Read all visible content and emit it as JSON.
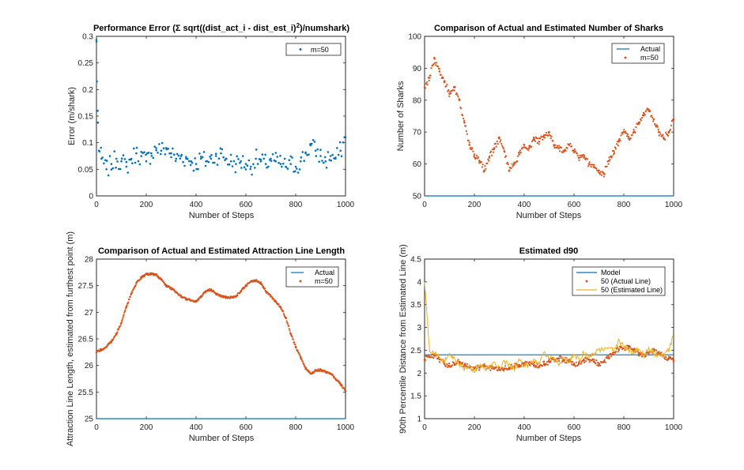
{
  "chart_data": [
    {
      "type": "scatter",
      "title": "Performance Error (Σ sqrt((dist_act_i - dist_est_i)",
      "title_sup": "2",
      "title_tail": ")/numshark)",
      "xlabel": "Number of Steps",
      "ylabel": "Error (m/shark)",
      "xlim": [
        0,
        1000
      ],
      "ylim": [
        0,
        0.3
      ],
      "xticks": [
        0,
        200,
        400,
        600,
        800,
        1000
      ],
      "yticks": [
        0,
        0.05,
        0.1,
        0.15,
        0.2,
        0.25,
        0.3
      ],
      "legend_position": "top-right",
      "x": [
        0,
        2,
        5,
        10,
        20,
        40,
        60,
        80,
        100,
        120,
        140,
        160,
        180,
        200,
        220,
        240,
        260,
        280,
        300,
        320,
        340,
        360,
        380,
        400,
        420,
        440,
        460,
        480,
        500,
        520,
        540,
        560,
        580,
        600,
        620,
        640,
        660,
        680,
        700,
        720,
        740,
        760,
        780,
        800,
        820,
        840,
        860,
        880,
        900,
        920,
        940,
        960,
        980,
        1000
      ],
      "series": [
        {
          "name": "m=50",
          "style": "points",
          "color": "#0072BD",
          "values": [
            0.29,
            0.215,
            0.16,
            0.085,
            0.07,
            0.05,
            0.06,
            0.07,
            0.065,
            0.055,
            0.07,
            0.08,
            0.075,
            0.065,
            0.08,
            0.09,
            0.085,
            0.09,
            0.08,
            0.07,
            0.075,
            0.07,
            0.065,
            0.06,
            0.07,
            0.065,
            0.07,
            0.075,
            0.08,
            0.07,
            0.065,
            0.06,
            0.065,
            0.06,
            0.055,
            0.07,
            0.065,
            0.06,
            0.07,
            0.065,
            0.06,
            0.055,
            0.06,
            0.055,
            0.065,
            0.08,
            0.095,
            0.085,
            0.075,
            0.065,
            0.075,
            0.07,
            0.085,
            0.11
          ]
        }
      ]
    },
    {
      "type": "scatter",
      "title": "Comparison of Actual and Estimated Number of Sharks",
      "xlabel": "Number of Steps",
      "ylabel": "Number of Sharks",
      "xlim": [
        0,
        1000
      ],
      "ylim": [
        50,
        100
      ],
      "xticks": [
        0,
        200,
        400,
        600,
        800,
        1000
      ],
      "yticks": [
        50,
        60,
        70,
        80,
        90,
        100
      ],
      "legend_position": "top-right",
      "x": [
        0,
        20,
        40,
        60,
        80,
        100,
        120,
        140,
        160,
        180,
        200,
        220,
        240,
        260,
        280,
        300,
        320,
        340,
        360,
        380,
        400,
        420,
        440,
        460,
        480,
        500,
        520,
        540,
        560,
        580,
        600,
        620,
        640,
        660,
        680,
        700,
        720,
        740,
        760,
        780,
        800,
        820,
        840,
        860,
        880,
        900,
        920,
        940,
        960,
        980,
        1000
      ],
      "series": [
        {
          "name": "Actual",
          "style": "line",
          "color": "#0072BD",
          "values": [
            50,
            50,
            50,
            50,
            50,
            50,
            50,
            50,
            50,
            50,
            50,
            50,
            50,
            50,
            50,
            50,
            50,
            50,
            50,
            50,
            50,
            50,
            50,
            50,
            50,
            50,
            50,
            50,
            50,
            50,
            50,
            50,
            50,
            50,
            50,
            50,
            50,
            50,
            50,
            50,
            50,
            50,
            50,
            50,
            50,
            50,
            50,
            50,
            50,
            50,
            50
          ]
        },
        {
          "name": "m=50",
          "style": "points",
          "color": "#D95319",
          "values": [
            84,
            87,
            93,
            89,
            86,
            82,
            84,
            80,
            73,
            66,
            63,
            61,
            58,
            62,
            65,
            68,
            64,
            58,
            60,
            63,
            66,
            65,
            68,
            67,
            69,
            70,
            66,
            65,
            64,
            66,
            64,
            62,
            62,
            60,
            59,
            58,
            57,
            61,
            64,
            67,
            70,
            68,
            70,
            73,
            76,
            77,
            74,
            70,
            68,
            70,
            74
          ]
        }
      ]
    },
    {
      "type": "line",
      "title": "Comparison of Actual and Estimated Attraction Line Length",
      "xlabel": "Number of Steps",
      "ylabel": "Attraction Line Length, estimated from furthest point (m)",
      "xlim": [
        0,
        1000
      ],
      "ylim": [
        25,
        28
      ],
      "xticks": [
        0,
        200,
        400,
        600,
        800,
        1000
      ],
      "yticks": [
        25,
        25.5,
        26,
        26.5,
        27,
        27.5,
        28
      ],
      "legend_position": "top-right",
      "x": [
        0,
        20,
        40,
        60,
        80,
        100,
        120,
        140,
        160,
        180,
        200,
        220,
        240,
        260,
        280,
        300,
        320,
        340,
        360,
        380,
        400,
        420,
        440,
        460,
        480,
        500,
        520,
        540,
        560,
        580,
        600,
        620,
        640,
        660,
        680,
        700,
        720,
        740,
        760,
        780,
        800,
        820,
        840,
        860,
        880,
        900,
        920,
        940,
        960,
        980,
        1000
      ],
      "series": [
        {
          "name": "Actual",
          "style": "line",
          "color": "#0072BD",
          "values": [
            25,
            25,
            25,
            25,
            25,
            25,
            25,
            25,
            25,
            25,
            25,
            25,
            25,
            25,
            25,
            25,
            25,
            25,
            25,
            25,
            25,
            25,
            25,
            25,
            25,
            25,
            25,
            25,
            25,
            25,
            25,
            25,
            25,
            25,
            25,
            25,
            25,
            25,
            25,
            25,
            25,
            25,
            25,
            25,
            25,
            25,
            25,
            25,
            25,
            25,
            25
          ]
        },
        {
          "name": "m=50",
          "style": "points",
          "color": "#D95319",
          "values": [
            26.25,
            26.3,
            26.35,
            26.45,
            26.6,
            26.8,
            27.1,
            27.35,
            27.55,
            27.65,
            27.72,
            27.72,
            27.7,
            27.62,
            27.5,
            27.45,
            27.38,
            27.3,
            27.25,
            27.22,
            27.2,
            27.3,
            27.4,
            27.43,
            27.35,
            27.3,
            27.28,
            27.28,
            27.3,
            27.4,
            27.5,
            27.58,
            27.6,
            27.55,
            27.4,
            27.3,
            27.2,
            27.1,
            26.9,
            26.6,
            26.35,
            26.15,
            25.95,
            25.85,
            25.9,
            25.92,
            25.88,
            25.85,
            25.75,
            25.65,
            25.52
          ]
        }
      ]
    },
    {
      "type": "line",
      "title": "Estimated d90",
      "xlabel": "Number of Steps",
      "ylabel": "90th Percentile Distance from Estimated Line (m)",
      "xlim": [
        0,
        1000
      ],
      "ylim": [
        1,
        4.5
      ],
      "xticks": [
        0,
        200,
        400,
        600,
        800,
        1000
      ],
      "yticks": [
        1,
        1.5,
        2,
        2.5,
        3,
        3.5,
        4,
        4.5
      ],
      "legend_position": "top-right",
      "x": [
        0,
        20,
        40,
        60,
        80,
        100,
        120,
        140,
        160,
        180,
        200,
        220,
        240,
        260,
        280,
        300,
        320,
        340,
        360,
        380,
        400,
        420,
        440,
        460,
        480,
        500,
        520,
        540,
        560,
        580,
        600,
        620,
        640,
        660,
        680,
        700,
        720,
        740,
        760,
        780,
        800,
        820,
        840,
        860,
        880,
        900,
        920,
        940,
        960,
        980,
        1000
      ],
      "series": [
        {
          "name": "Model",
          "style": "line",
          "color": "#0072BD",
          "values": [
            2.4,
            2.4,
            2.4,
            2.4,
            2.4,
            2.4,
            2.4,
            2.4,
            2.4,
            2.4,
            2.4,
            2.4,
            2.4,
            2.4,
            2.4,
            2.4,
            2.4,
            2.4,
            2.4,
            2.4,
            2.4,
            2.4,
            2.4,
            2.4,
            2.4,
            2.4,
            2.4,
            2.4,
            2.4,
            2.4,
            2.4,
            2.4,
            2.4,
            2.4,
            2.4,
            2.4,
            2.4,
            2.4,
            2.4,
            2.4,
            2.4,
            2.4,
            2.4,
            2.4,
            2.4,
            2.4,
            2.4,
            2.4,
            2.4,
            2.4,
            2.4
          ]
        },
        {
          "name": "50 (Actual Line)",
          "style": "points",
          "color": "#D95319",
          "values": [
            2.3,
            2.35,
            2.38,
            2.3,
            2.2,
            2.15,
            2.2,
            2.25,
            2.18,
            2.12,
            2.1,
            2.12,
            2.15,
            2.12,
            2.1,
            2.08,
            2.1,
            2.12,
            2.15,
            2.18,
            2.2,
            2.2,
            2.18,
            2.15,
            2.2,
            2.25,
            2.3,
            2.32,
            2.3,
            2.25,
            2.2,
            2.22,
            2.28,
            2.3,
            2.25,
            2.2,
            2.25,
            2.35,
            2.45,
            2.52,
            2.55,
            2.58,
            2.5,
            2.42,
            2.4,
            2.45,
            2.48,
            2.42,
            2.38,
            2.32,
            2.28
          ]
        },
        {
          "name": "50 (Estimated Line)",
          "style": "line",
          "color": "#EDB120",
          "values": [
            4.0,
            2.5,
            2.45,
            2.35,
            2.25,
            2.4,
            2.3,
            2.2,
            2.1,
            2.15,
            2.05,
            2.2,
            2.1,
            2.15,
            2.2,
            2.1,
            2.25,
            2.2,
            2.1,
            2.3,
            2.15,
            2.2,
            2.3,
            2.2,
            2.45,
            2.35,
            2.3,
            2.2,
            2.35,
            2.25,
            2.4,
            2.3,
            2.45,
            2.35,
            2.4,
            2.5,
            2.55,
            2.6,
            2.5,
            2.7,
            2.6,
            2.5,
            2.45,
            2.55,
            2.4,
            2.5,
            2.45,
            2.35,
            2.4,
            2.5,
            2.85
          ]
        }
      ]
    }
  ]
}
